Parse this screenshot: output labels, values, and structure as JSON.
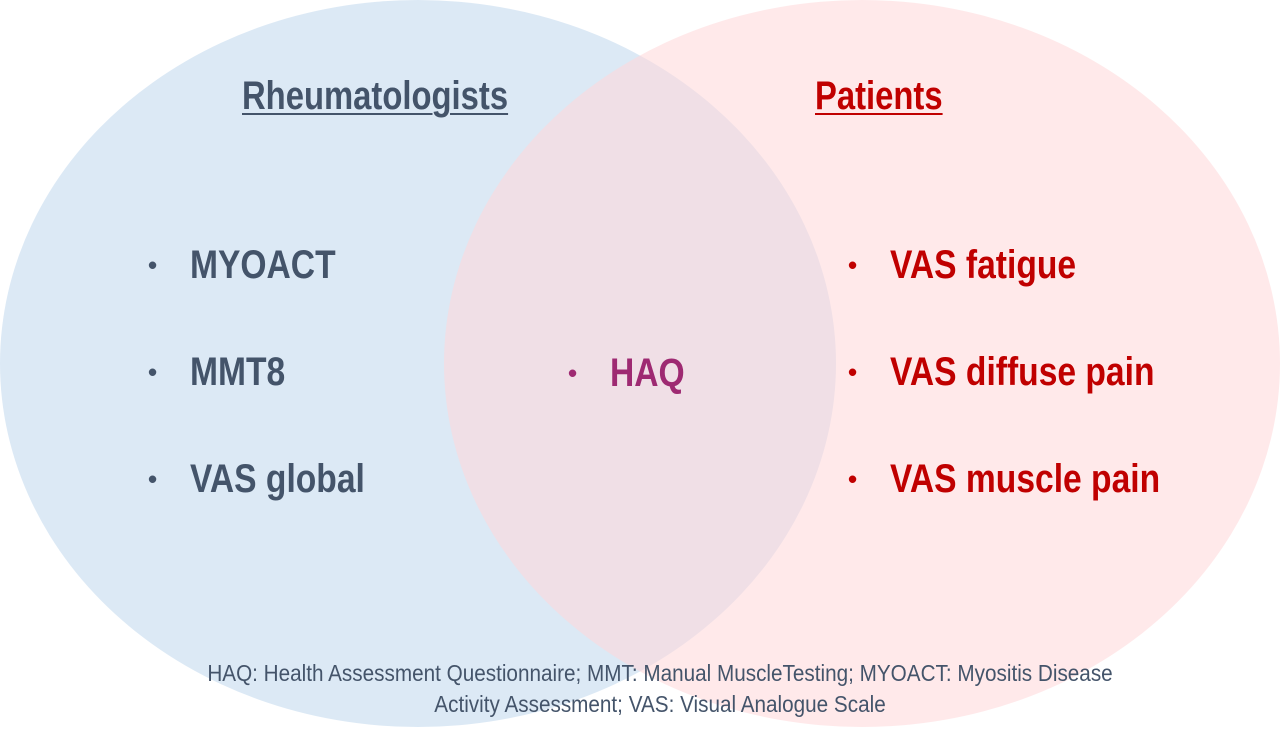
{
  "venn": {
    "left_set": {
      "title": "Rheumatologists",
      "color": "#44546a",
      "fill": "#cddff0",
      "items": [
        "MYOACT",
        "MMT8",
        "VAS global"
      ]
    },
    "right_set": {
      "title": "Patients",
      "color": "#c00000",
      "fill": "#ffdfe1",
      "items": [
        "VAS fatigue",
        "VAS diffuse pain",
        "VAS muscle pain"
      ]
    },
    "overlap": {
      "color": "#9e2a72",
      "items": [
        "HAQ"
      ]
    },
    "bullet": "•"
  },
  "footnote": {
    "line1": "HAQ: Health Assessment Questionnaire; MMT: Manual MuscleTesting; MYOACT: Myositis Disease",
    "line2": "Activity Assessment; VAS: Visual Analogue Scale"
  }
}
